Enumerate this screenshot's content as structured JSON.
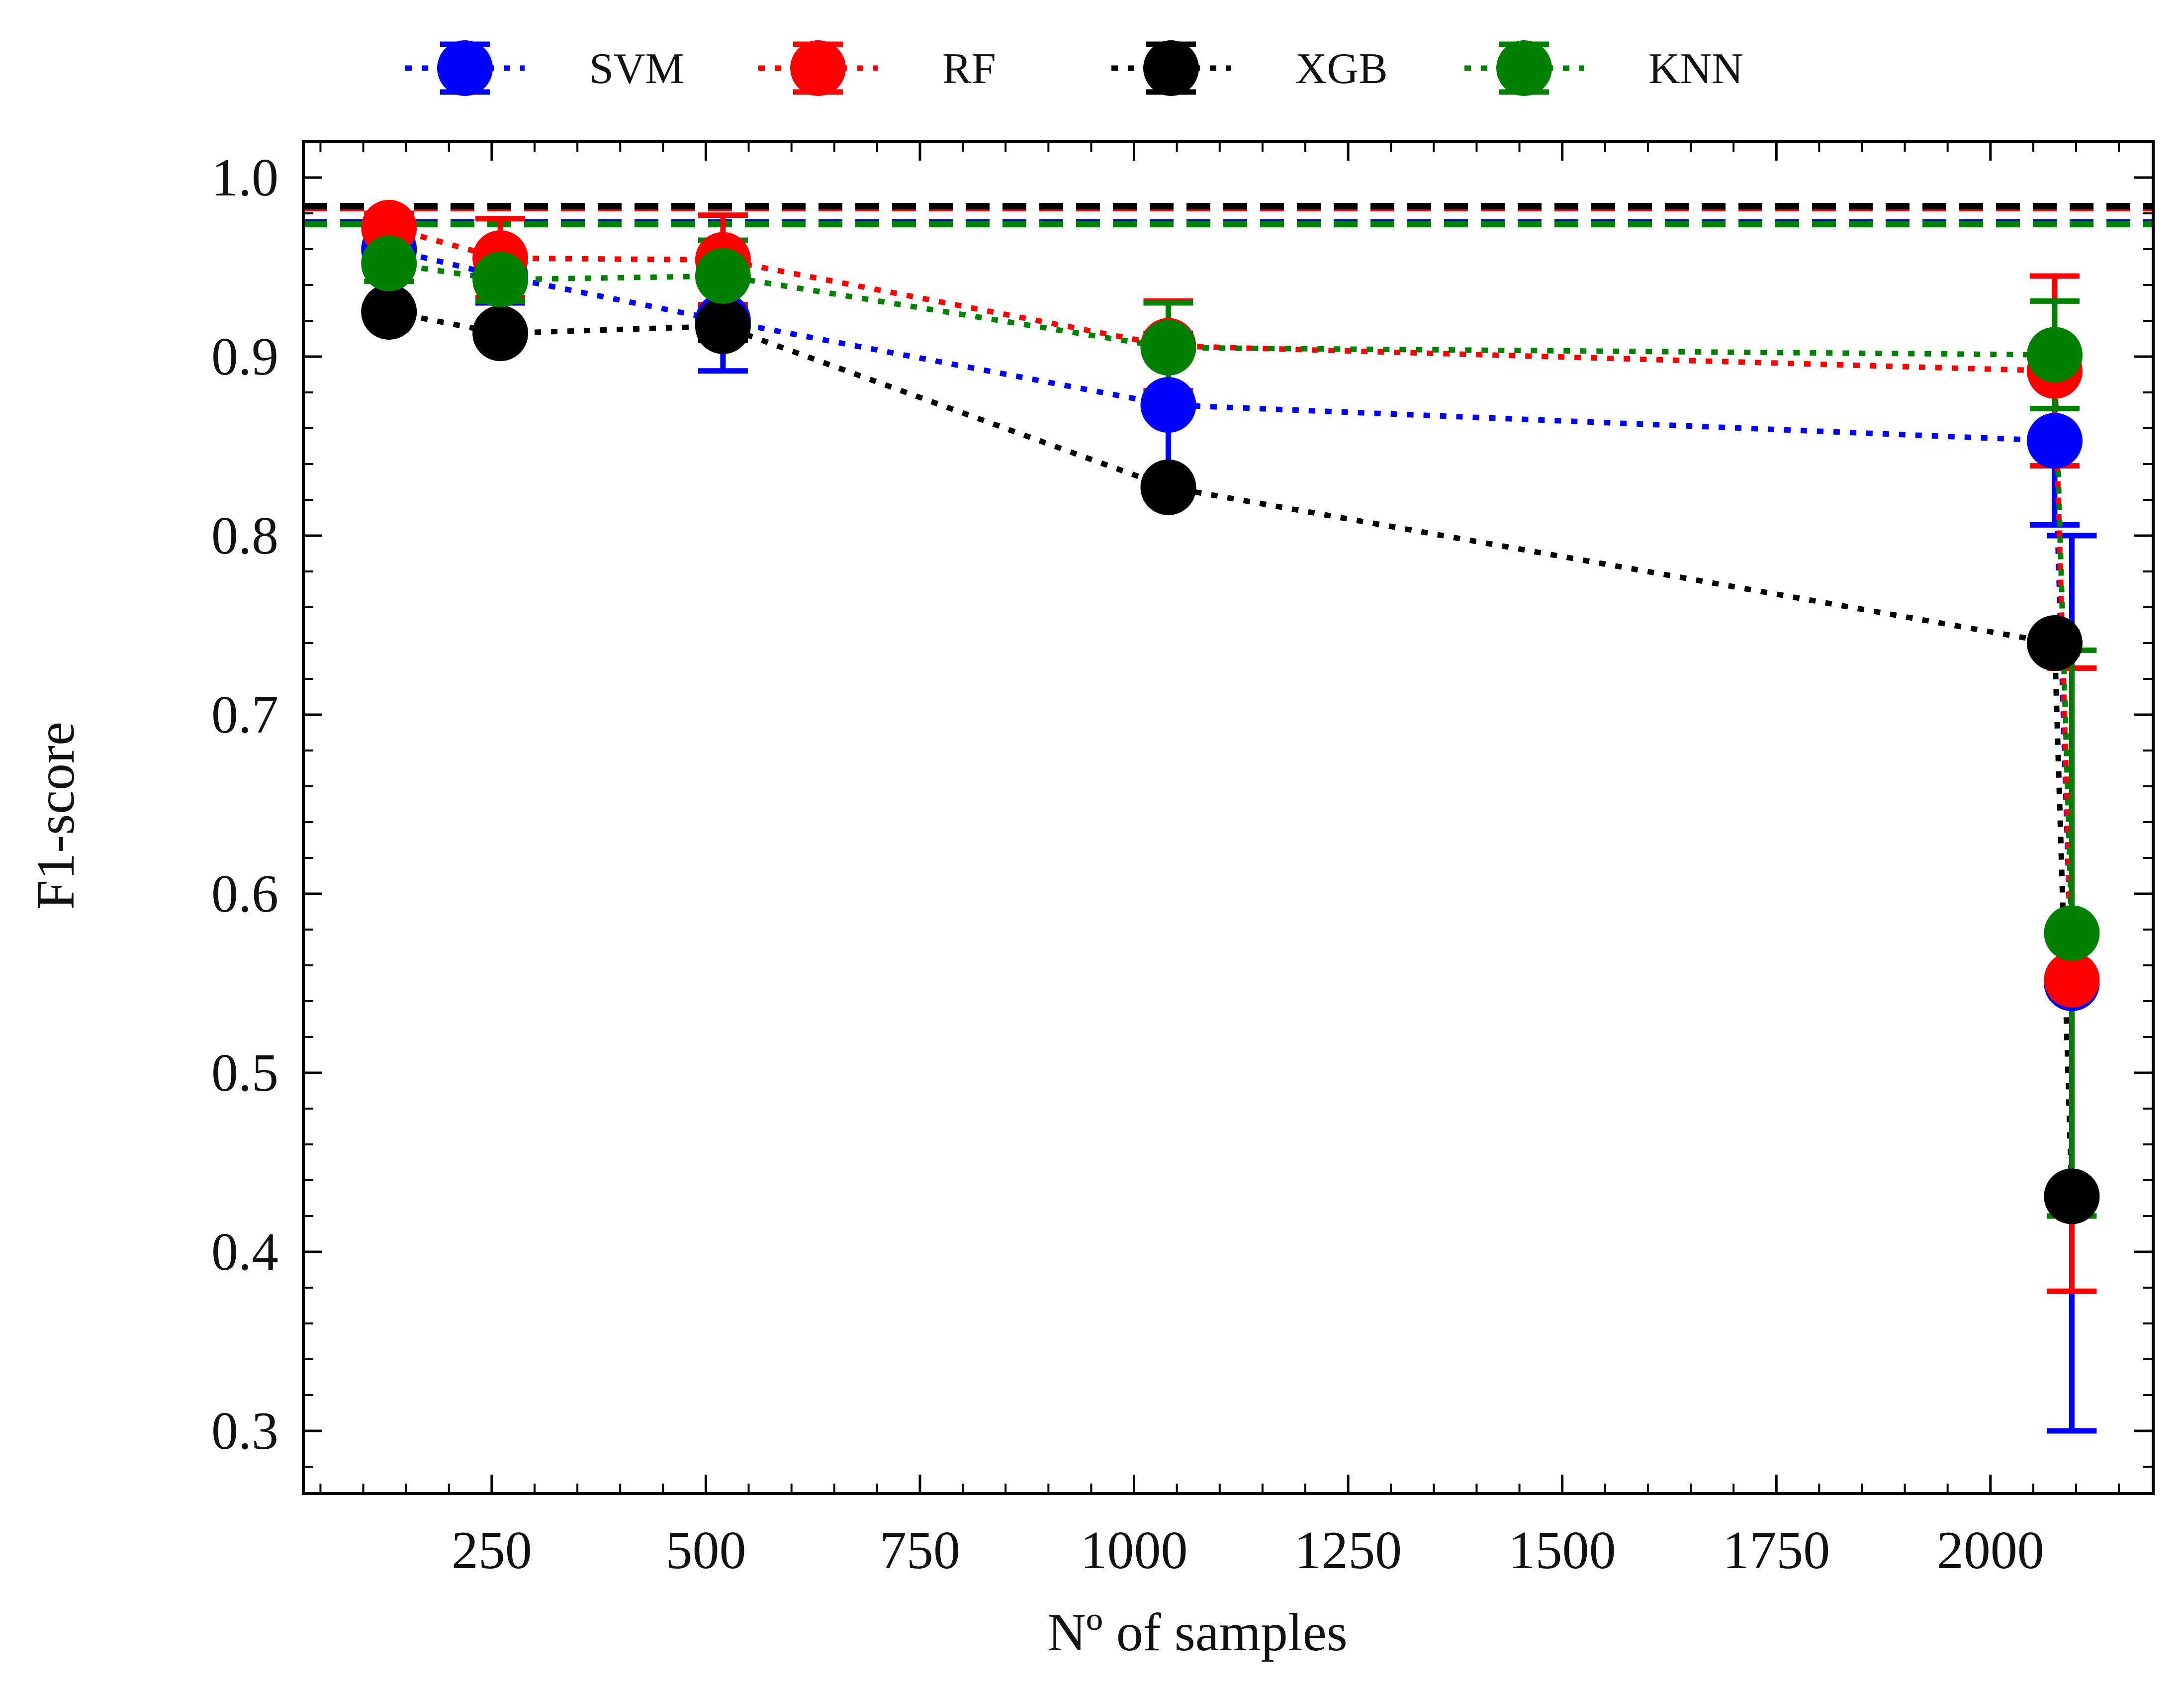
{
  "chart_data": {
    "type": "line",
    "title": "",
    "xlabel": "Nº of samples",
    "ylabel": "F1-score",
    "xlim": [
      30,
      2190
    ],
    "ylim": [
      0.265,
      1.02
    ],
    "x_ticks": [
      250,
      500,
      750,
      1000,
      1250,
      1500,
      1750,
      2000
    ],
    "x_tick_labels": [
      "250",
      "500",
      "750",
      "1000",
      "1250",
      "1500",
      "1750",
      "2000"
    ],
    "y_ticks": [
      0.3,
      0.4,
      0.5,
      0.6,
      0.7,
      0.8,
      0.9,
      1.0
    ],
    "y_tick_labels": [
      "0.3",
      "0.4",
      "0.5",
      "0.6",
      "0.7",
      "0.8",
      "0.9",
      "1.0"
    ],
    "grid": false,
    "legend_position": "top-center-outside",
    "series": [
      {
        "name": "SVM",
        "color": "#0000ff",
        "x": [
          130,
          260,
          520,
          1040,
          2075,
          2095
        ],
        "y": [
          0.96,
          0.945,
          0.92,
          0.873,
          0.853,
          0.55
        ],
        "err": [
          0.008,
          0.015,
          0.028,
          0.04,
          0.047,
          0.25
        ],
        "reference": 0.975
      },
      {
        "name": "RF",
        "color": "#ff0000",
        "x": [
          130,
          260,
          520,
          1040,
          2075,
          2095
        ],
        "y": [
          0.972,
          0.955,
          0.954,
          0.906,
          0.892,
          0.552
        ],
        "err": [
          0.008,
          0.022,
          0.025,
          0.025,
          0.053,
          0.174
        ],
        "reference": 0.983
      },
      {
        "name": "XGB",
        "color": "#000000",
        "x": [
          130,
          260,
          520,
          1040,
          2075,
          2095
        ],
        "y": [
          0.925,
          0.913,
          0.917,
          0.827,
          0.74,
          0.431
        ],
        "err": [
          0.005,
          0.005,
          0.008,
          0.006,
          0.006,
          0.005
        ],
        "reference": 0.984
      },
      {
        "name": "KNN",
        "color": "#008000",
        "x": [
          130,
          260,
          520,
          1040,
          2075,
          2095
        ],
        "y": [
          0.952,
          0.943,
          0.945,
          0.905,
          0.901,
          0.578
        ],
        "err": [
          0.01,
          0.012,
          0.02,
          0.025,
          0.03,
          0.158
        ],
        "reference": 0.974
      }
    ]
  }
}
